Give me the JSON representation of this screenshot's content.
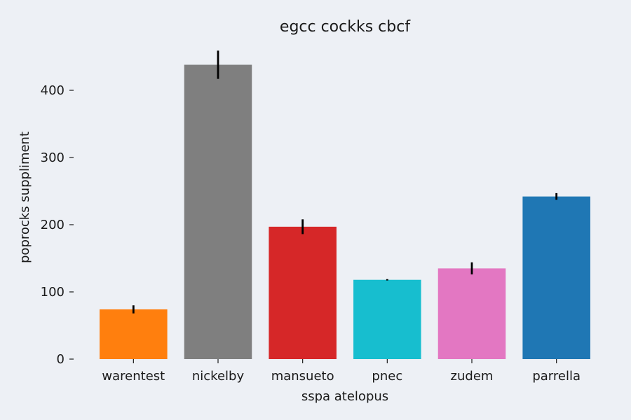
{
  "chart_data": {
    "type": "bar",
    "title": "egcc cockks cbcf",
    "xlabel": "sspa atelopus",
    "ylabel": "poprocks suppliment",
    "categories": [
      "warentest",
      "nickelby",
      "mansueto",
      "pnec",
      "zudem",
      "parrella"
    ],
    "values": [
      74,
      438,
      197,
      118,
      135,
      242
    ],
    "errors": [
      6,
      21,
      11,
      1,
      9,
      5
    ],
    "colors": [
      "#ff7f0e",
      "#7f7f7f",
      "#d62728",
      "#17becf",
      "#e377c2",
      "#1f77b4"
    ],
    "ylim": [
      0,
      460
    ],
    "yticks": [
      0,
      100,
      200,
      300,
      400
    ],
    "grid": false,
    "legend": "none"
  }
}
